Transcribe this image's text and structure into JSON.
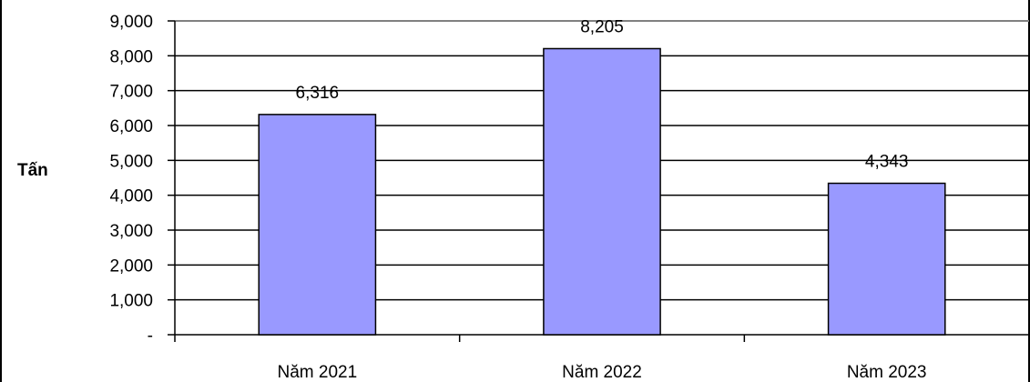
{
  "chart_data": {
    "type": "bar",
    "title": "",
    "xlabel": "",
    "ylabel": "Tấn",
    "categories": [
      "Năm 2021",
      "Năm 2022",
      "Năm 2023"
    ],
    "series": [
      {
        "values": [
          6316,
          8205,
          4343
        ],
        "color": "#9999ff"
      }
    ],
    "data_labels": [
      "6,316",
      "8,205",
      "4,343"
    ],
    "y_tick_labels": [
      "-",
      "1,000",
      "2,000",
      "3,000",
      "4,000",
      "5,000",
      "6,000",
      "7,000",
      "8,000",
      "9,000"
    ],
    "ylim": [
      0,
      9000
    ],
    "y_tick_step": 1000,
    "grid": true,
    "legend": "none",
    "colors": {
      "bar_fill": "#9999ff",
      "bar_stroke": "#000000",
      "gridline": "#000000",
      "frame_top": "#808080"
    }
  }
}
